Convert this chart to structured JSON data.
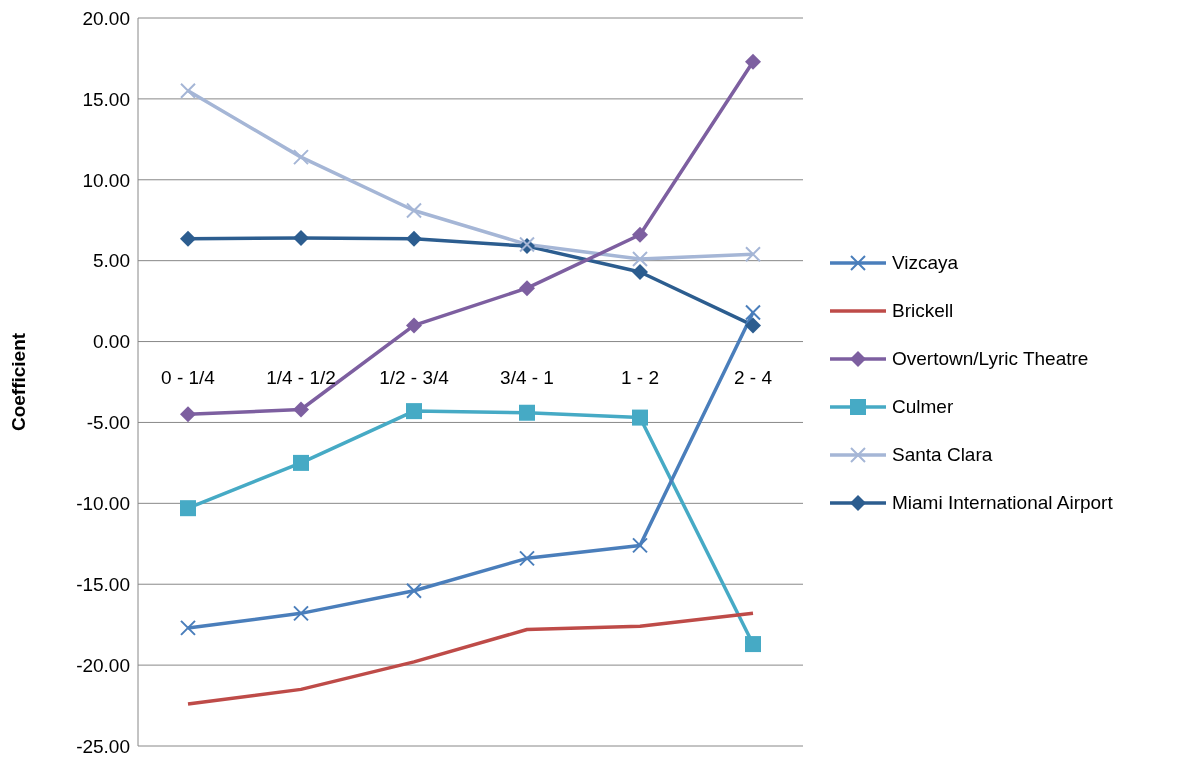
{
  "chart_data": {
    "type": "line",
    "ylabel": "Coefficient",
    "categories": [
      "0 - 1/4",
      "1/4 - 1/2",
      "1/2 - 3/4",
      "3/4 - 1",
      "1 - 2",
      "2 - 4"
    ],
    "ylim": [
      -25,
      20
    ],
    "yticks": [
      {
        "value": -25,
        "label": "-25.00"
      },
      {
        "value": -20,
        "label": "-20.00"
      },
      {
        "value": -15,
        "label": "-15.00"
      },
      {
        "value": -10,
        "label": "-10.00"
      },
      {
        "value": -5,
        "label": "-5.00"
      },
      {
        "value": 0,
        "label": "0.00"
      },
      {
        "value": 5,
        "label": "5.00"
      },
      {
        "value": 10,
        "label": "10.00"
      },
      {
        "value": 15,
        "label": "15.00"
      },
      {
        "value": 20,
        "label": "20.00"
      }
    ],
    "grid": "y",
    "legend": "right",
    "line_style": "solid",
    "series": [
      {
        "name": "Vizcaya",
        "color": "#4a7ebb",
        "marker": "cross",
        "values": [
          -17.7,
          -16.8,
          -15.4,
          -13.4,
          -12.6,
          1.8
        ]
      },
      {
        "name": "Brickell",
        "color": "#be4b48",
        "marker": "none",
        "values": [
          -22.4,
          -21.5,
          -19.8,
          -17.8,
          -17.6,
          -16.8
        ]
      },
      {
        "name": "Overtown/Lyric Theatre",
        "color": "#7d5fa0",
        "marker": "diamond",
        "values": [
          -4.5,
          -4.2,
          1.0,
          3.3,
          6.6,
          17.3
        ]
      },
      {
        "name": "Culmer",
        "color": "#46aac5",
        "marker": "square",
        "values": [
          -10.3,
          -7.5,
          -4.3,
          -4.4,
          -4.7,
          -18.7
        ]
      },
      {
        "name": "Santa Clara",
        "color": "#a5b6d6",
        "marker": "cross",
        "values": [
          15.5,
          11.4,
          8.1,
          6.0,
          5.1,
          5.4
        ]
      },
      {
        "name": "Miami International Airport",
        "color": "#2c5d8f",
        "marker": "diamond",
        "values": [
          6.35,
          6.4,
          6.35,
          5.9,
          4.3,
          1.0
        ]
      }
    ]
  }
}
